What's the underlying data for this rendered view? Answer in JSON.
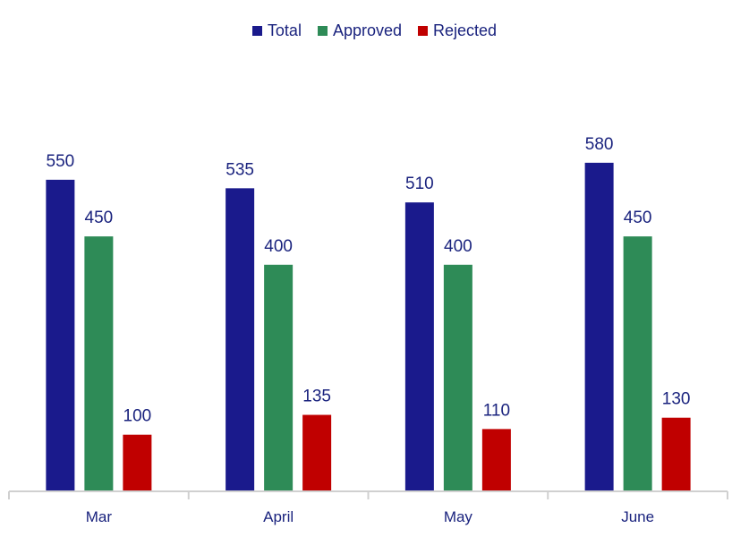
{
  "chart_data": {
    "type": "bar",
    "categories": [
      "Mar",
      "April",
      "May",
      "June"
    ],
    "series": [
      {
        "name": "Total",
        "values": [
          550,
          535,
          510,
          580
        ],
        "color": "#1a1a8c"
      },
      {
        "name": "Approved",
        "values": [
          450,
          400,
          400,
          450
        ],
        "color": "#2e8b57"
      },
      {
        "name": "Rejected",
        "values": [
          100,
          135,
          110,
          130
        ],
        "color": "#c00000"
      }
    ],
    "data_label_color": "#1a237e",
    "axis_color": "#d0d0d0",
    "legend_position": "top-center",
    "grid": false,
    "ylim": [
      0,
      600
    ]
  }
}
